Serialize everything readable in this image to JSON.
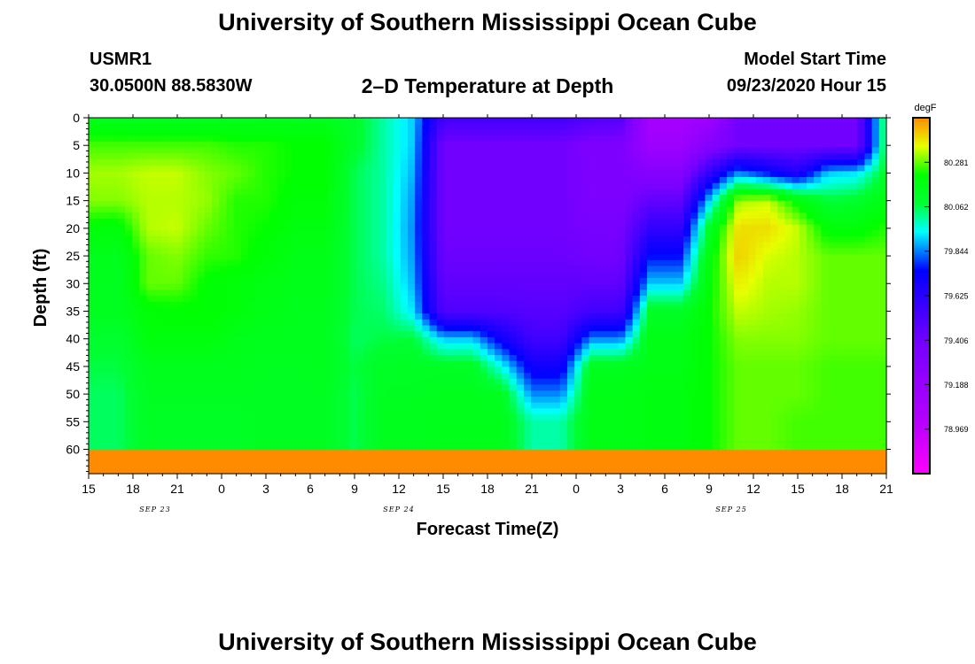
{
  "header": {
    "title_top": "University of Southern Mississippi Ocean Cube",
    "station_id": "USMR1",
    "coordinates": "30.0500N 88.5830W",
    "plot_title": "2–D Temperature at Depth",
    "model_start_label": "Model Start Time",
    "model_start_value": "09/23/2020 Hour 15",
    "title_bottom": "University of Southern Mississippi Ocean Cube"
  },
  "chart_data": {
    "type": "heatmap",
    "title": "2–D Temperature at Depth",
    "xlabel": "Forecast Time(Z)",
    "ylabel": "Depth (ft)",
    "x_hours_range": [
      0,
      54
    ],
    "x_ticks": [
      {
        "h": 0,
        "label": "15"
      },
      {
        "h": 3,
        "label": "18"
      },
      {
        "h": 6,
        "label": "21"
      },
      {
        "h": 9,
        "label": "0"
      },
      {
        "h": 12,
        "label": "3"
      },
      {
        "h": 15,
        "label": "6"
      },
      {
        "h": 18,
        "label": "9"
      },
      {
        "h": 21,
        "label": "12"
      },
      {
        "h": 24,
        "label": "15"
      },
      {
        "h": 27,
        "label": "18"
      },
      {
        "h": 30,
        "label": "21"
      },
      {
        "h": 33,
        "label": "0"
      },
      {
        "h": 36,
        "label": "3"
      },
      {
        "h": 39,
        "label": "6"
      },
      {
        "h": 42,
        "label": "9"
      },
      {
        "h": 45,
        "label": "12"
      },
      {
        "h": 48,
        "label": "15"
      },
      {
        "h": 51,
        "label": "18"
      },
      {
        "h": 54,
        "label": "21"
      }
    ],
    "x_date_labels": [
      {
        "h": 4.5,
        "label": "SEP 23"
      },
      {
        "h": 21,
        "label": "SEP 24"
      },
      {
        "h": 43.5,
        "label": "SEP 25"
      }
    ],
    "ylim": [
      0,
      64.4
    ],
    "y_ticks": [
      0,
      5,
      10,
      15,
      20,
      25,
      30,
      35,
      40,
      45,
      50,
      55,
      60
    ],
    "colorbar": {
      "unit": "degF",
      "min": 78.75,
      "max": 80.5,
      "tick_values": [
        80.281,
        80.062,
        79.844,
        79.625,
        79.406,
        79.188,
        78.969
      ],
      "tick_labels": [
        "80.281",
        "80.062",
        "79.844",
        "79.625",
        "79.406",
        "79.188",
        "78.969"
      ]
    },
    "grid_hours": [
      0,
      2,
      4,
      6,
      8,
      10,
      12,
      14,
      16,
      18,
      20,
      22,
      24,
      26,
      28,
      30,
      32,
      34,
      36,
      38,
      40,
      42,
      44,
      46,
      48,
      50,
      52,
      54
    ],
    "grid_depths": [
      0,
      5,
      10,
      15,
      20,
      25,
      30,
      35,
      40,
      45,
      50,
      55,
      60,
      64.4
    ],
    "values": [
      [
        80.15,
        80.26,
        80.32,
        80.3,
        80.2,
        80.15,
        80.14,
        80.14,
        80.1,
        80.07,
        80.05,
        80.05,
        80.05
      ],
      [
        80.14,
        80.26,
        80.32,
        80.3,
        80.19,
        80.14,
        80.13,
        80.13,
        80.09,
        80.07,
        80.05,
        80.05,
        80.05
      ],
      [
        80.14,
        80.26,
        80.34,
        80.33,
        80.33,
        80.28,
        80.28,
        80.2,
        80.19,
        80.14,
        80.13,
        80.12,
        80.12
      ],
      [
        80.14,
        80.26,
        80.34,
        80.33,
        80.34,
        80.3,
        80.28,
        80.21,
        80.19,
        80.14,
        80.13,
        80.12,
        80.12
      ],
      [
        80.14,
        80.26,
        80.3,
        80.31,
        80.28,
        80.25,
        80.21,
        80.21,
        80.19,
        80.14,
        80.13,
        80.12,
        80.12
      ],
      [
        80.14,
        80.24,
        80.28,
        80.24,
        80.24,
        80.24,
        80.19,
        80.19,
        80.15,
        80.14,
        80.13,
        80.12,
        80.12
      ],
      [
        80.14,
        80.24,
        80.24,
        80.24,
        80.22,
        80.2,
        80.17,
        80.16,
        80.14,
        80.13,
        80.13,
        80.13,
        80.13
      ],
      [
        80.14,
        80.22,
        80.22,
        80.2,
        80.18,
        80.16,
        80.15,
        80.14,
        80.14,
        80.13,
        80.13,
        80.13,
        80.13
      ],
      [
        80.14,
        80.22,
        80.22,
        80.2,
        80.18,
        80.16,
        80.15,
        80.14,
        80.14,
        80.14,
        80.13,
        80.13,
        80.13
      ],
      [
        80.1,
        80.1,
        80.06,
        80.06,
        80.06,
        80.06,
        80.06,
        80.06,
        80.05,
        80.07,
        80.06,
        80.06,
        80.06
      ],
      [
        80.0,
        80.0,
        80.0,
        80.0,
        80.0,
        80.0,
        80.02,
        80.04,
        80.07,
        80.12,
        80.13,
        80.14,
        80.14
      ],
      [
        79.9,
        79.9,
        79.88,
        79.86,
        79.85,
        79.86,
        79.88,
        79.92,
        80.08,
        80.12,
        80.13,
        80.14,
        80.14
      ],
      [
        79.55,
        79.4,
        79.4,
        79.4,
        79.4,
        79.42,
        79.45,
        79.5,
        79.9,
        80.12,
        80.14,
        80.15,
        80.15
      ],
      [
        79.55,
        79.4,
        79.4,
        79.4,
        79.4,
        79.42,
        79.45,
        79.5,
        79.9,
        80.12,
        80.14,
        80.15,
        80.15
      ],
      [
        79.55,
        79.4,
        79.4,
        79.4,
        79.4,
        79.42,
        79.45,
        79.5,
        79.7,
        79.95,
        80.13,
        80.15,
        80.15
      ],
      [
        79.55,
        79.4,
        79.4,
        79.4,
        79.4,
        79.42,
        79.45,
        79.48,
        79.55,
        79.7,
        79.85,
        80.0,
        80.0
      ],
      [
        79.55,
        79.4,
        79.4,
        79.4,
        79.4,
        79.42,
        79.45,
        79.48,
        79.55,
        79.7,
        79.85,
        80.0,
        80.0
      ],
      [
        79.5,
        79.35,
        79.35,
        79.35,
        79.38,
        79.4,
        79.45,
        79.55,
        79.85,
        80.14,
        80.16,
        80.16,
        80.16
      ],
      [
        79.5,
        79.35,
        79.35,
        79.35,
        79.38,
        79.4,
        79.45,
        79.55,
        79.85,
        80.14,
        80.16,
        80.16,
        80.16
      ],
      [
        79.1,
        79.15,
        79.3,
        79.45,
        79.6,
        79.75,
        79.9,
        80.12,
        80.16,
        80.16,
        80.18,
        80.18,
        80.18
      ],
      [
        79.1,
        79.15,
        79.3,
        79.45,
        79.6,
        79.75,
        79.9,
        80.12,
        80.16,
        80.16,
        80.18,
        80.18,
        80.18
      ],
      [
        79.15,
        79.3,
        79.6,
        79.9,
        80.12,
        80.18,
        80.2,
        80.22,
        80.22,
        80.22,
        80.22,
        80.22,
        80.22
      ],
      [
        79.4,
        79.4,
        79.85,
        80.32,
        80.4,
        80.42,
        80.38,
        80.34,
        80.3,
        80.28,
        80.28,
        80.28,
        80.28
      ],
      [
        79.4,
        79.4,
        79.75,
        80.34,
        80.4,
        80.35,
        80.33,
        80.32,
        80.3,
        80.28,
        80.28,
        80.28,
        80.28
      ],
      [
        79.4,
        79.4,
        79.65,
        80.2,
        80.34,
        80.33,
        80.33,
        80.31,
        80.3,
        80.28,
        80.28,
        80.26,
        80.26
      ],
      [
        79.4,
        79.4,
        79.9,
        80.08,
        80.2,
        80.28,
        80.28,
        80.28,
        80.28,
        80.26,
        80.26,
        80.26,
        80.26
      ],
      [
        79.4,
        79.4,
        79.92,
        80.1,
        80.2,
        80.28,
        80.28,
        80.28,
        80.28,
        80.26,
        80.26,
        80.26,
        80.26
      ],
      [
        80.1,
        80.1,
        80.1,
        80.18,
        80.24,
        80.28,
        80.28,
        80.28,
        80.28,
        80.26,
        80.26,
        80.26,
        80.26
      ]
    ]
  }
}
